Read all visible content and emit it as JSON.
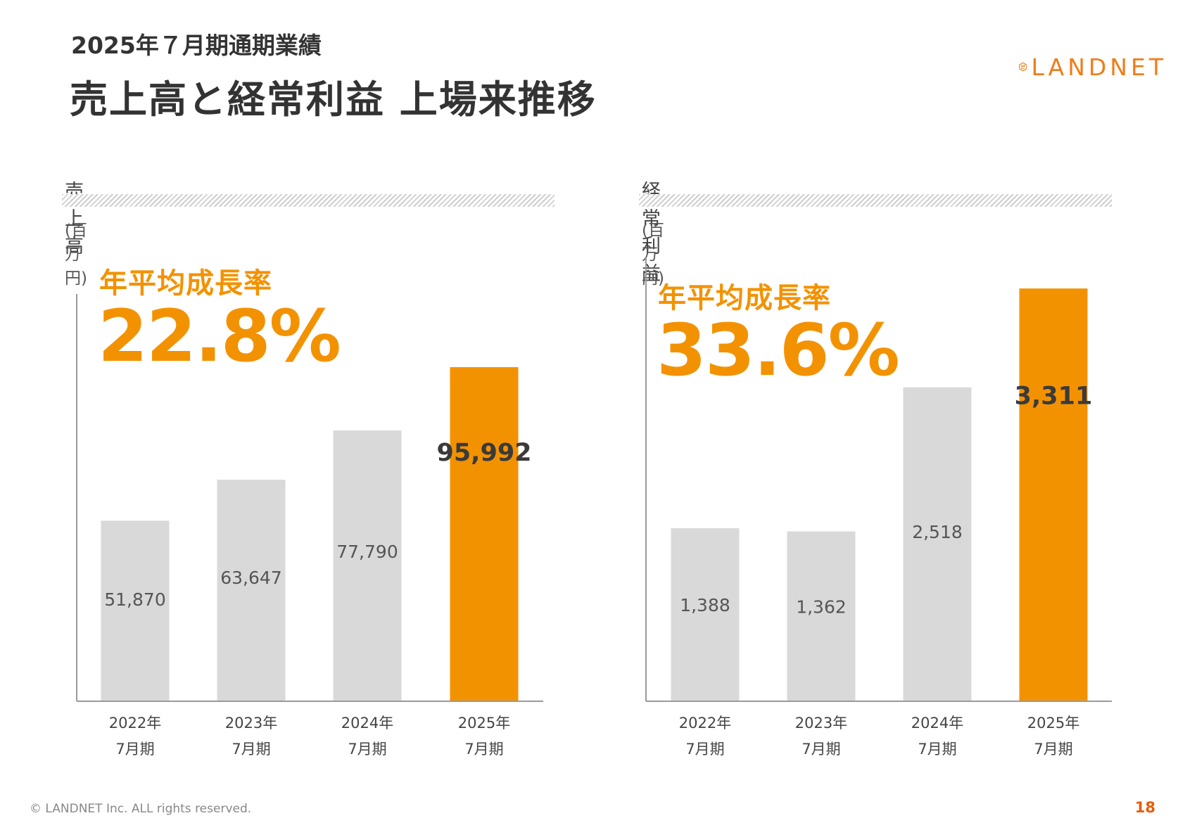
{
  "header": {
    "subtitle": "2025年７月期通期業績",
    "title": "売上高と経常利益 上場来推移",
    "logo_text": "LANDNET"
  },
  "colors": {
    "accent": "#f39200",
    "bar_gray": "#d9d9d9",
    "text": "#333333",
    "page_number": "#e85d0c"
  },
  "panels": {
    "sales": {
      "title": "売上高",
      "unit": "(百万円)",
      "cagr_label": "年平均成長率",
      "cagr_value": "22.8%"
    },
    "profit": {
      "title": "経常利益",
      "unit": "(百万円)",
      "cagr_label": "年平均成長率",
      "cagr_value": "33.6%"
    }
  },
  "chart_data": [
    {
      "type": "bar",
      "title": "売上高",
      "ylabel": "(百万円)",
      "categories": [
        [
          "2022年",
          "7月期"
        ],
        [
          "2023年",
          "7月期"
        ],
        [
          "2024年",
          "7月期"
        ],
        [
          "2025年",
          "7月期"
        ]
      ],
      "values": [
        51870,
        63647,
        77790,
        95992
      ],
      "value_labels": [
        "51,870",
        "63,647",
        "77,790",
        "95,992"
      ],
      "highlight_index": 3,
      "ylim": [
        0,
        117000
      ]
    },
    {
      "type": "bar",
      "title": "経常利益",
      "ylabel": "(百万円)",
      "categories": [
        [
          "2022年",
          "7月期"
        ],
        [
          "2023年",
          "7月期"
        ],
        [
          "2024年",
          "7月期"
        ],
        [
          "2025年",
          "7月期"
        ]
      ],
      "values": [
        1388,
        1362,
        2518,
        3311
      ],
      "value_labels": [
        "1,388",
        "1,362",
        "2,518",
        "3,311"
      ],
      "highlight_index": 3,
      "ylim": [
        0,
        3560
      ]
    }
  ],
  "footer": {
    "copyright": "© LANDNET Inc. ALL rights reserved.",
    "page_number": "18"
  }
}
